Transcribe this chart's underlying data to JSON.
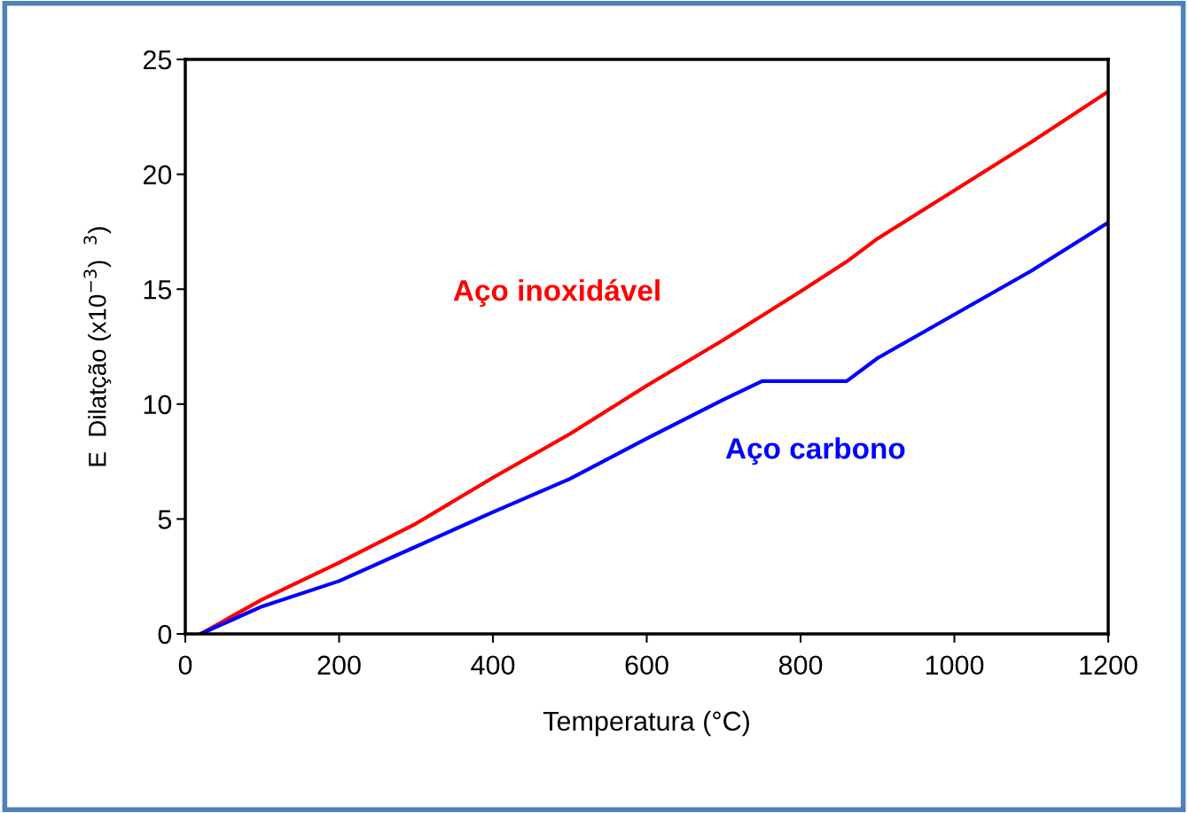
{
  "chart_data": {
    "type": "line",
    "xlabel": "Temperatura (°C)",
    "ylabel": "E  Dilatção (x10$^{−3}$)  $^{3}$)",
    "xlim": [
      0,
      1200
    ],
    "xticks": [
      0,
      200,
      400,
      600,
      800,
      1000,
      1200
    ],
    "ylim": [
      0,
      25
    ],
    "yticks": [
      0,
      5,
      10,
      15,
      20,
      25
    ],
    "grid": false,
    "legend": false,
    "marker": "none",
    "line_style": "solid",
    "series": [
      {
        "name": "Aço inoxidável",
        "color": "#ff0000",
        "x": [
          20,
          100,
          200,
          300,
          400,
          500,
          600,
          700,
          800,
          860,
          900,
          1000,
          1100,
          1200
        ],
        "values": [
          0,
          1.5,
          3.1,
          4.8,
          6.8,
          8.7,
          10.8,
          12.8,
          14.9,
          16.2,
          17.2,
          19.3,
          21.4,
          23.6
        ]
      },
      {
        "name": "Aço carbono",
        "color": "#0000ff",
        "x": [
          20,
          100,
          200,
          300,
          400,
          500,
          600,
          700,
          750,
          860,
          900,
          1000,
          1100,
          1200
        ],
        "values": [
          0,
          1.2,
          2.3,
          3.8,
          5.3,
          6.75,
          8.5,
          10.2,
          11.0,
          11.0,
          12.0,
          13.9,
          15.8,
          17.9
        ]
      }
    ]
  }
}
